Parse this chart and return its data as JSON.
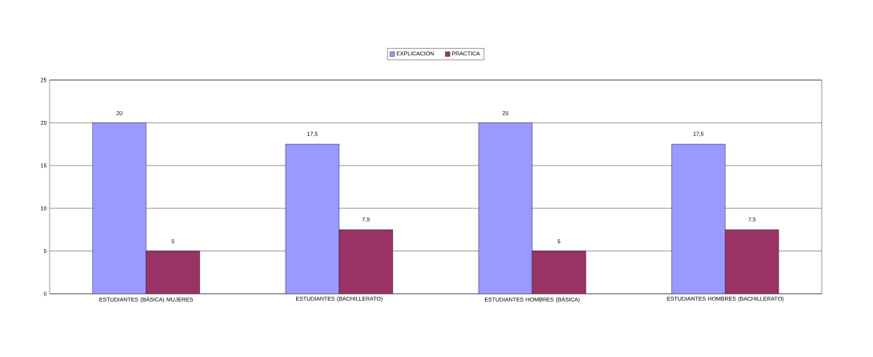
{
  "chart_data": {
    "type": "bar",
    "categories": [
      "ESTUDIANTES  (BÁSICA)  MUJERES",
      "ESTUDIANTES  (BACHILLERATO)",
      "ESTUDIANTES  HOMBRES  (BÁSICA)",
      "ESTUDIANTES  HOMBRES (BACHILLERATO)"
    ],
    "series": [
      {
        "name": "EXPLICACION",
        "color": "#9999ff",
        "values": [
          20,
          17.5,
          20,
          17.5
        ],
        "value_labels": [
          "20",
          "17,5",
          "20",
          "17,5"
        ]
      },
      {
        "name": "PRACTICA",
        "color": "#993366",
        "values": [
          5,
          7.5,
          5,
          7.5
        ],
        "value_labels": [
          "5",
          "7,5",
          "5",
          "7,5"
        ]
      }
    ],
    "ylim": [
      0,
      25
    ],
    "yticks": [
      0,
      5,
      10,
      15,
      20,
      25
    ],
    "grid": "y",
    "legend": "top"
  }
}
